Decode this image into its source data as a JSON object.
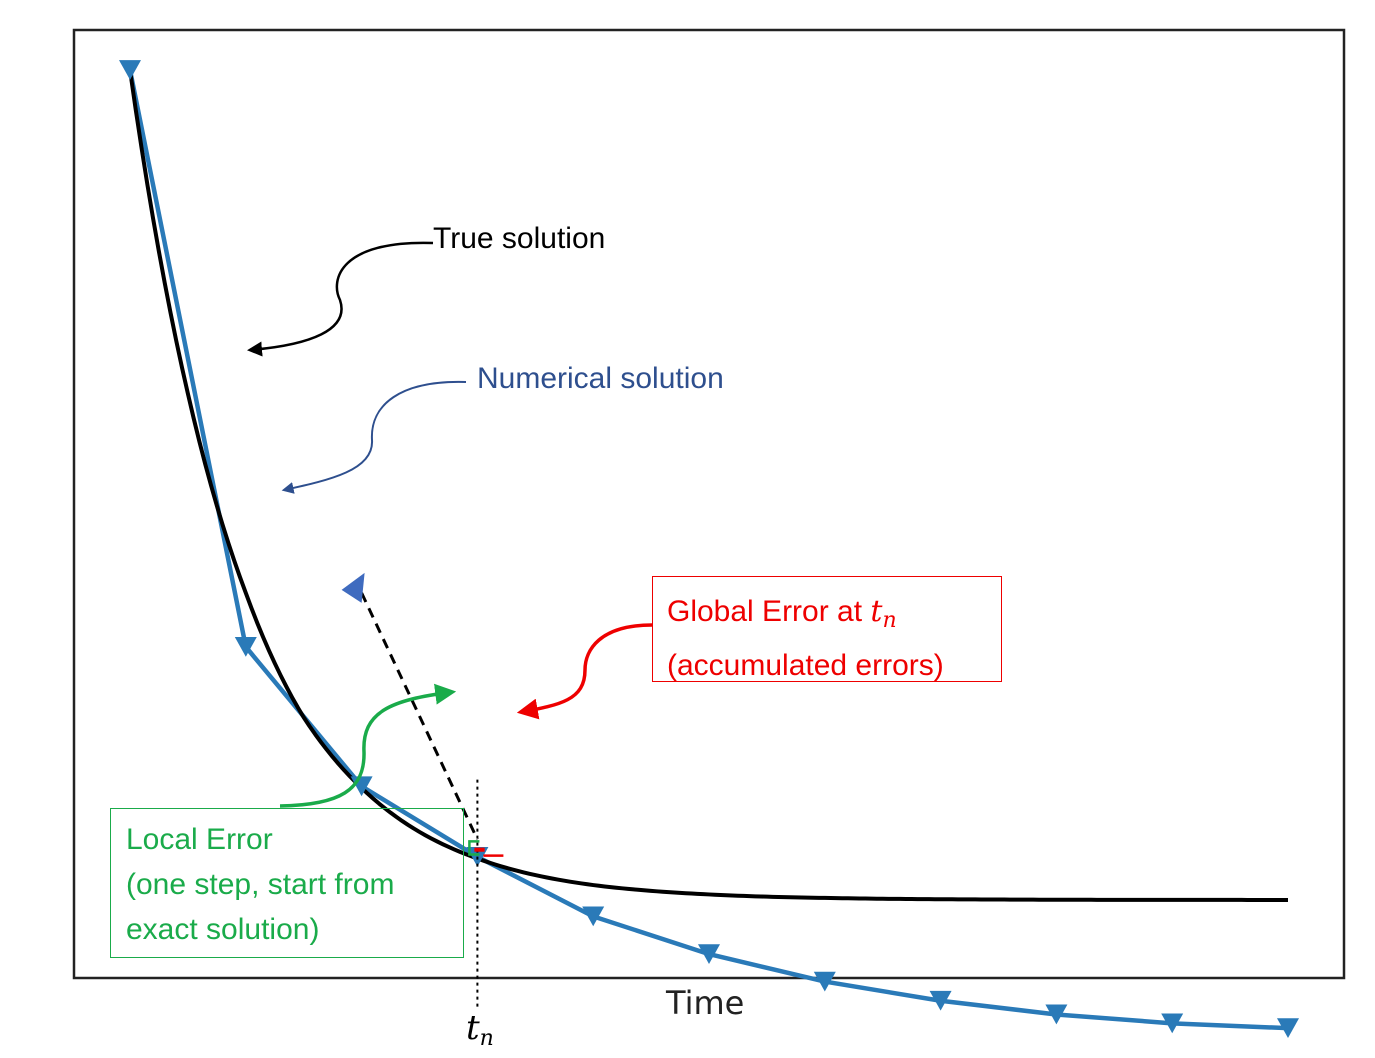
{
  "chart_data": {
    "type": "line",
    "xlabel": "Time",
    "ylabel": "",
    "title": "",
    "grid": false,
    "series": [
      {
        "name": "True solution",
        "color": "#000000",
        "marker": "none",
        "x": [
          0,
          0.5,
          1,
          1.5,
          2,
          2.5,
          3,
          3.5,
          4,
          4.5,
          5,
          5.5,
          6,
          6.5,
          7,
          7.5,
          8,
          8.5,
          9,
          9.5,
          10
        ],
        "y": [
          1.0,
          0.61,
          0.37,
          0.22,
          0.135,
          0.082,
          0.05,
          0.03,
          0.018,
          0.011,
          0.0067,
          0.004,
          0.0025,
          0.0015,
          0.0009,
          0.0006,
          0.0003,
          0.0002,
          0.0001,
          0.0001,
          0.0
        ]
      },
      {
        "name": "Numerical solution",
        "color": "#2a7ab8",
        "marker": "triangle-down",
        "x": [
          0,
          1,
          2,
          3,
          4,
          5,
          6,
          7,
          8,
          9,
          10
        ],
        "y": [
          1.0,
          0.305,
          0.137,
          0.052,
          -0.0197,
          -0.0652,
          -0.0983,
          -0.1214,
          -0.1379,
          -0.1486,
          -0.1544
        ]
      }
    ],
    "local_step": {
      "x0": 2,
      "y0": 0.37,
      "x1": 3,
      "y1": 0.073
    },
    "annotations": {
      "true_solution": "True solution",
      "numerical_solution": "Numerical solution",
      "global_error_line1": "Global Error at ",
      "global_error_var": "t",
      "global_error_sub": "n",
      "global_error_line2": "(accumulated errors)",
      "local_error_line1": "Local Error",
      "local_error_line2": "(one step, start from",
      "local_error_line3": "exact solution)",
      "tn_var": "t",
      "tn_sub": "n"
    },
    "colors": {
      "true": "#000000",
      "numerical": "#2a7ab8",
      "numerical_text": "#2e4f8e",
      "global": "#ee0000",
      "local": "#1aab4a",
      "start_marker": "#3f6bbf"
    }
  }
}
